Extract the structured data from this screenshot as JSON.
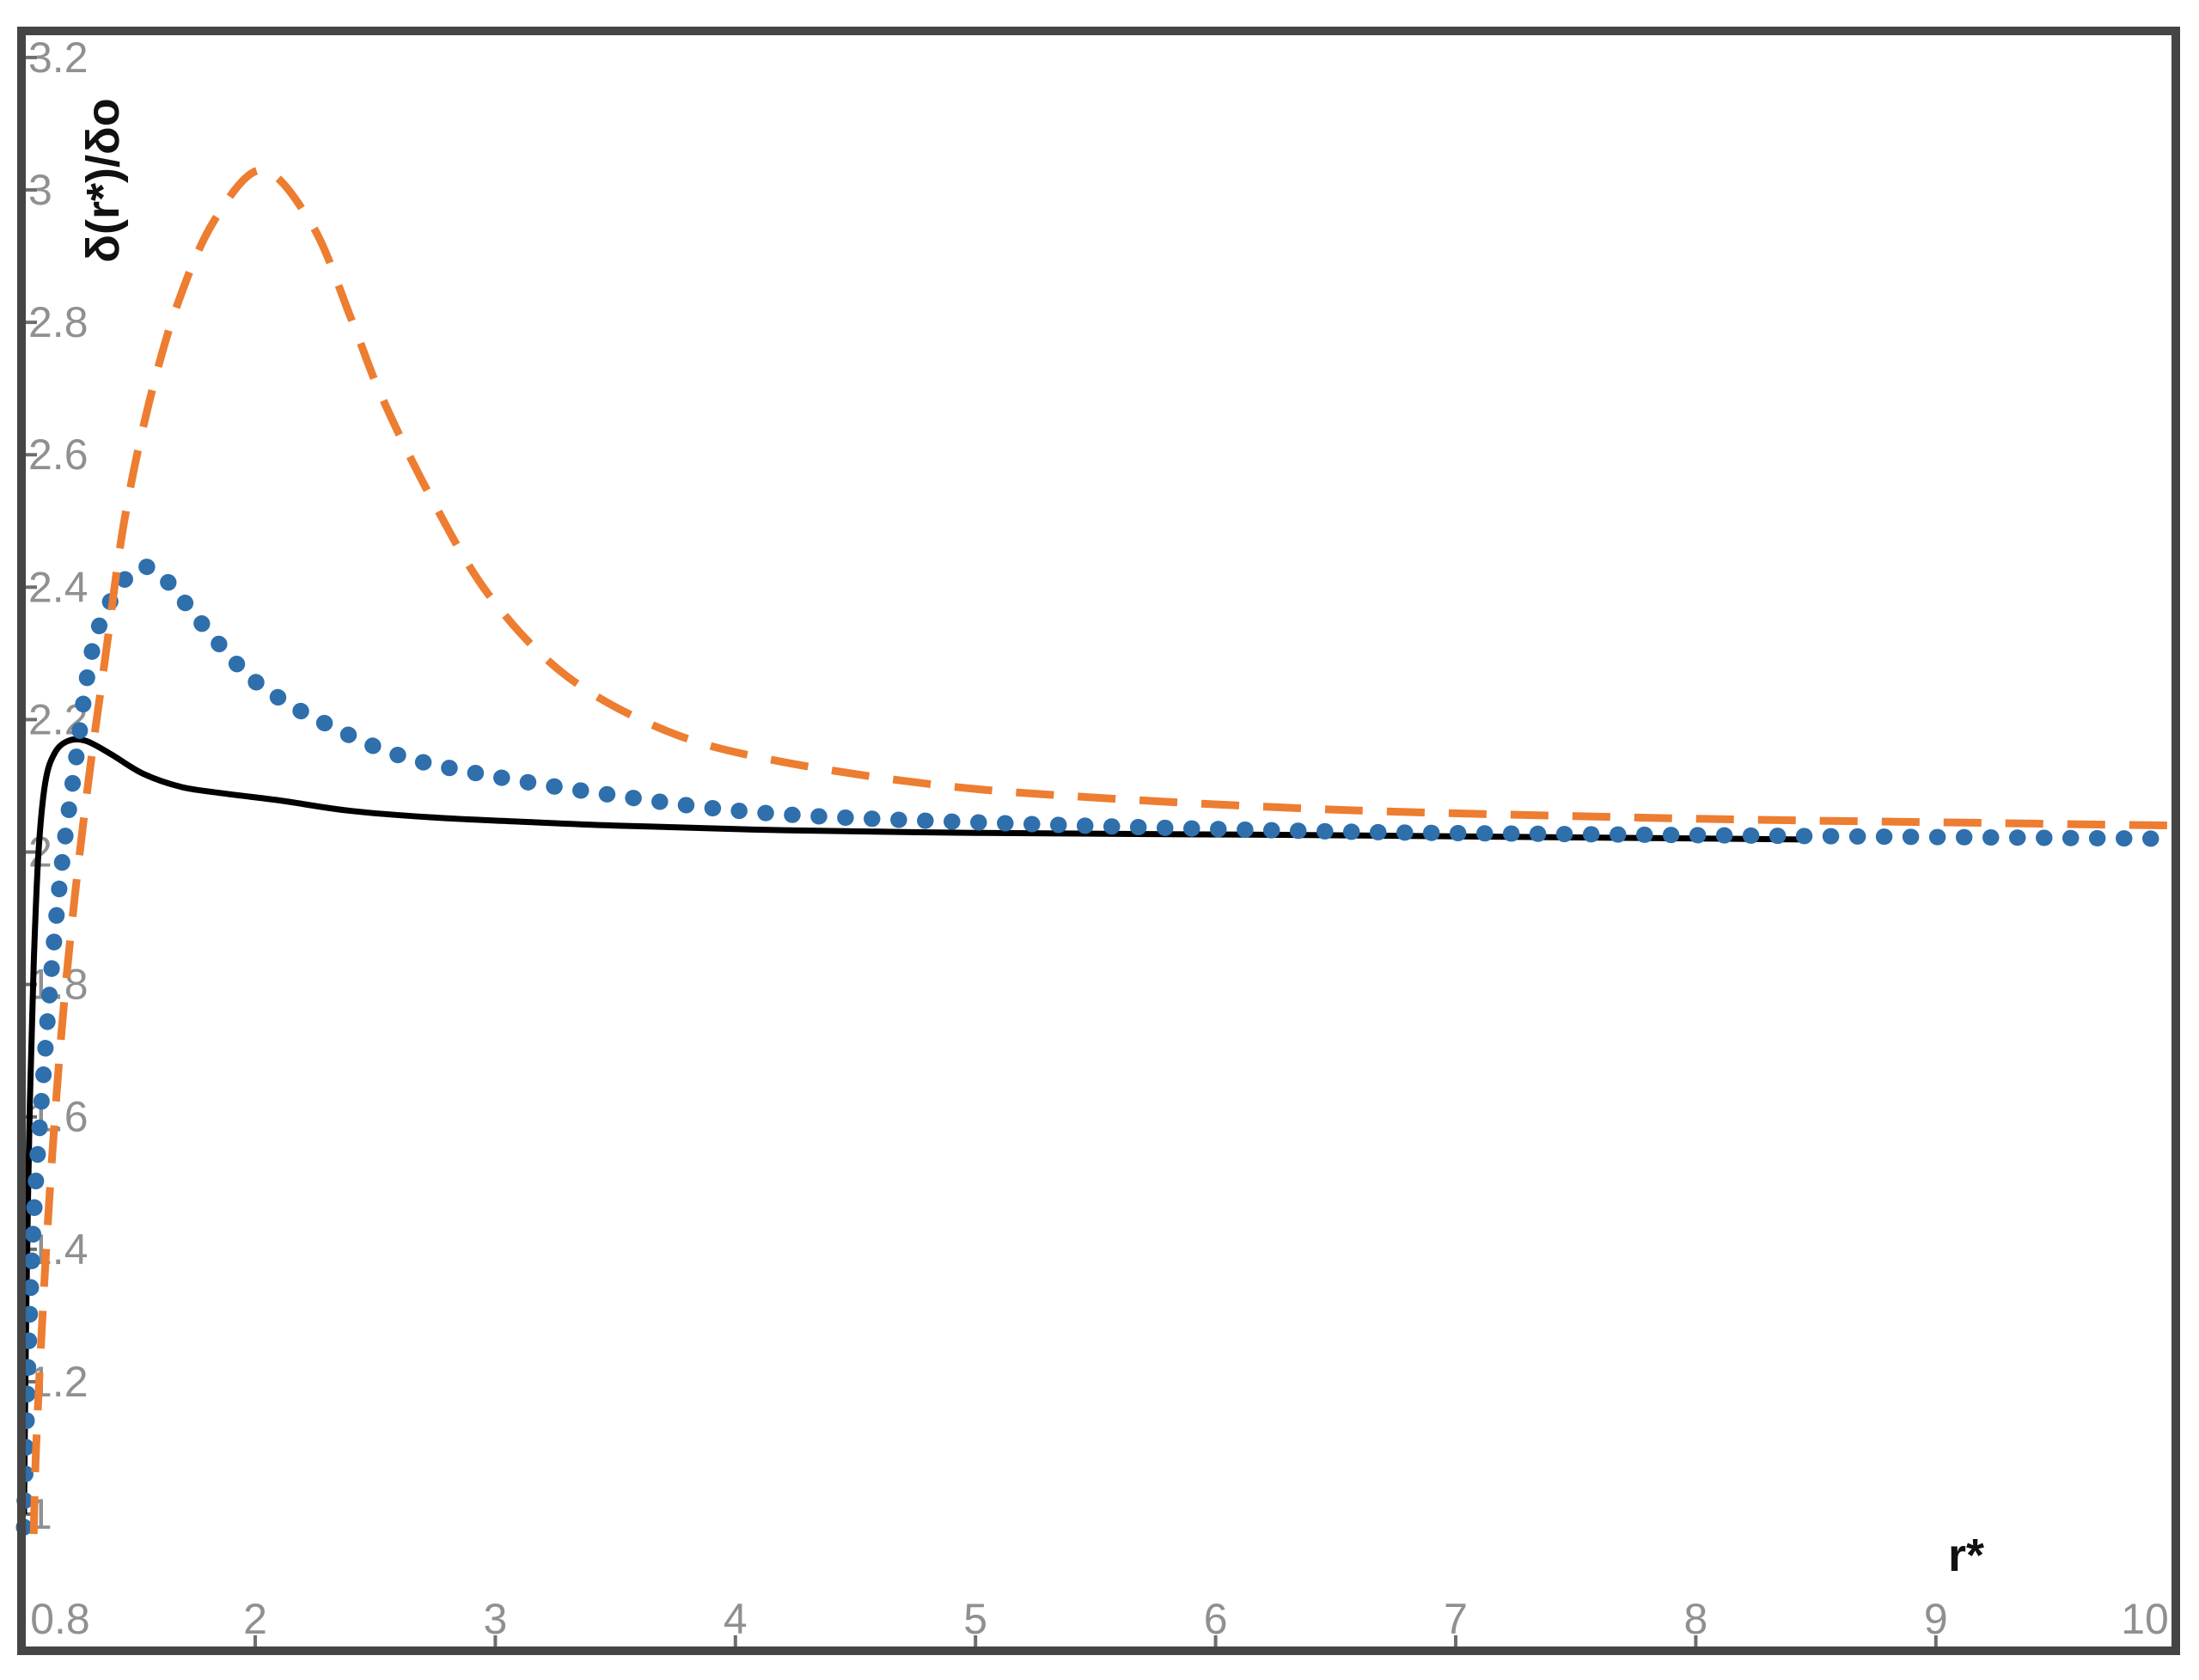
{
  "figure": {
    "background": "#ffffff",
    "frame_color": "#454545",
    "tick_mark_color": "#6e6e6e",
    "tick_label_color": "#909090",
    "axis_title_color": "#111111"
  },
  "chart_data": {
    "type": "line",
    "title": "",
    "xlabel": "r*",
    "ylabel": "δ(r*)/δo",
    "grid": false,
    "legend": "none",
    "xlim": [
      0.8,
      10.0
    ],
    "ylim": [
      0.8,
      3.23
    ],
    "x_ticks": [
      {
        "label": "0.8",
        "value": 0.8
      },
      {
        "label": "2",
        "value": 2
      },
      {
        "label": "3",
        "value": 3
      },
      {
        "label": "4",
        "value": 4
      },
      {
        "label": "5",
        "value": 5
      },
      {
        "label": "6",
        "value": 6
      },
      {
        "label": "7",
        "value": 7
      },
      {
        "label": "8",
        "value": 8
      },
      {
        "label": "9",
        "value": 9
      },
      {
        "label": "10",
        "value": 10
      }
    ],
    "y_ticks": [
      {
        "label": "1",
        "value": 1.0
      },
      {
        "label": "1.2",
        "value": 1.2
      },
      {
        "label": "1.4",
        "value": 1.4
      },
      {
        "label": "1.6",
        "value": 1.6
      },
      {
        "label": "1.8",
        "value": 1.8
      },
      {
        "label": "2",
        "value": 2.0
      },
      {
        "label": "2.2",
        "value": 2.2
      },
      {
        "label": "2.4",
        "value": 2.4
      },
      {
        "label": "2.6",
        "value": 2.6
      },
      {
        "label": "2.8",
        "value": 2.8
      },
      {
        "label": "3",
        "value": 3.0
      },
      {
        "label": "3.2",
        "value": 3.2
      }
    ],
    "series": [
      {
        "name": "black-solid",
        "style": "solid",
        "color": "#000000",
        "width": 7,
        "peak": {
          "x": 1.1,
          "y": 2.17
        },
        "points": [
          [
            0.8,
            1.0
          ],
          [
            0.805,
            1.15
          ],
          [
            0.815,
            1.38
          ],
          [
            0.83,
            1.62
          ],
          [
            0.85,
            1.83
          ],
          [
            0.875,
            2.0
          ],
          [
            0.91,
            2.105
          ],
          [
            0.96,
            2.15
          ],
          [
            1.03,
            2.168
          ],
          [
            1.12,
            2.168
          ],
          [
            1.25,
            2.148
          ],
          [
            1.42,
            2.118
          ],
          [
            1.62,
            2.098
          ],
          [
            1.85,
            2.088
          ],
          [
            2.1,
            2.078
          ],
          [
            2.4,
            2.062
          ],
          [
            2.75,
            2.052
          ],
          [
            3.1,
            2.046
          ],
          [
            3.5,
            2.04
          ],
          [
            4.2,
            2.033
          ],
          [
            5.0,
            2.029
          ],
          [
            5.8,
            2.027
          ],
          [
            6.6,
            2.025
          ],
          [
            7.5,
            2.022
          ],
          [
            8.45,
            2.019
          ]
        ]
      },
      {
        "name": "blue-dotted",
        "style": "dotted",
        "color": "#2E6FAC",
        "width": 19,
        "peak": {
          "x": 1.4,
          "y": 2.43
        },
        "points": [
          [
            0.8,
            0.98
          ],
          [
            0.81,
            1.1
          ],
          [
            0.825,
            1.26
          ],
          [
            0.855,
            1.47
          ],
          [
            0.9,
            1.66
          ],
          [
            0.945,
            1.83
          ],
          [
            1.0,
            1.99
          ],
          [
            1.065,
            2.13
          ],
          [
            1.15,
            2.3
          ],
          [
            1.26,
            2.385
          ],
          [
            1.4,
            2.43
          ],
          [
            1.52,
            2.415
          ],
          [
            1.64,
            2.375
          ],
          [
            1.78,
            2.325
          ],
          [
            1.97,
            2.265
          ],
          [
            2.12,
            2.228
          ],
          [
            2.27,
            2.198
          ],
          [
            2.55,
            2.152
          ],
          [
            2.85,
            2.124
          ],
          [
            3.45,
            2.088
          ],
          [
            4.16,
            2.058
          ],
          [
            5.25,
            2.042
          ],
          [
            6.5,
            2.031
          ],
          [
            7.5,
            2.027
          ],
          [
            8.5,
            2.024
          ],
          [
            10.0,
            2.02
          ]
        ]
      },
      {
        "name": "orange-dashed",
        "style": "dashed",
        "color": "#ED7D31",
        "width": 9,
        "peak": {
          "x": 2.0,
          "y": 3.03
        },
        "points": [
          [
            0.85,
            0.97
          ],
          [
            0.86,
            1.08
          ],
          [
            0.88,
            1.21
          ],
          [
            0.915,
            1.4
          ],
          [
            0.96,
            1.6
          ],
          [
            1.01,
            1.78
          ],
          [
            1.07,
            1.95
          ],
          [
            1.14,
            2.12
          ],
          [
            1.22,
            2.29
          ],
          [
            1.32,
            2.5
          ],
          [
            1.45,
            2.68
          ],
          [
            1.6,
            2.83
          ],
          [
            1.79,
            2.955
          ],
          [
            2.03,
            3.03
          ],
          [
            2.24,
            2.945
          ],
          [
            2.4,
            2.805
          ],
          [
            2.53,
            2.685
          ],
          [
            2.74,
            2.53
          ],
          [
            2.98,
            2.385
          ],
          [
            3.3,
            2.265
          ],
          [
            3.72,
            2.182
          ],
          [
            4.17,
            2.138
          ],
          [
            4.87,
            2.1
          ],
          [
            5.6,
            2.08
          ],
          [
            6.5,
            2.064
          ],
          [
            7.4,
            2.055
          ],
          [
            8.2,
            2.049
          ],
          [
            9.2,
            2.044
          ],
          [
            10.0,
            2.04
          ]
        ]
      }
    ]
  }
}
